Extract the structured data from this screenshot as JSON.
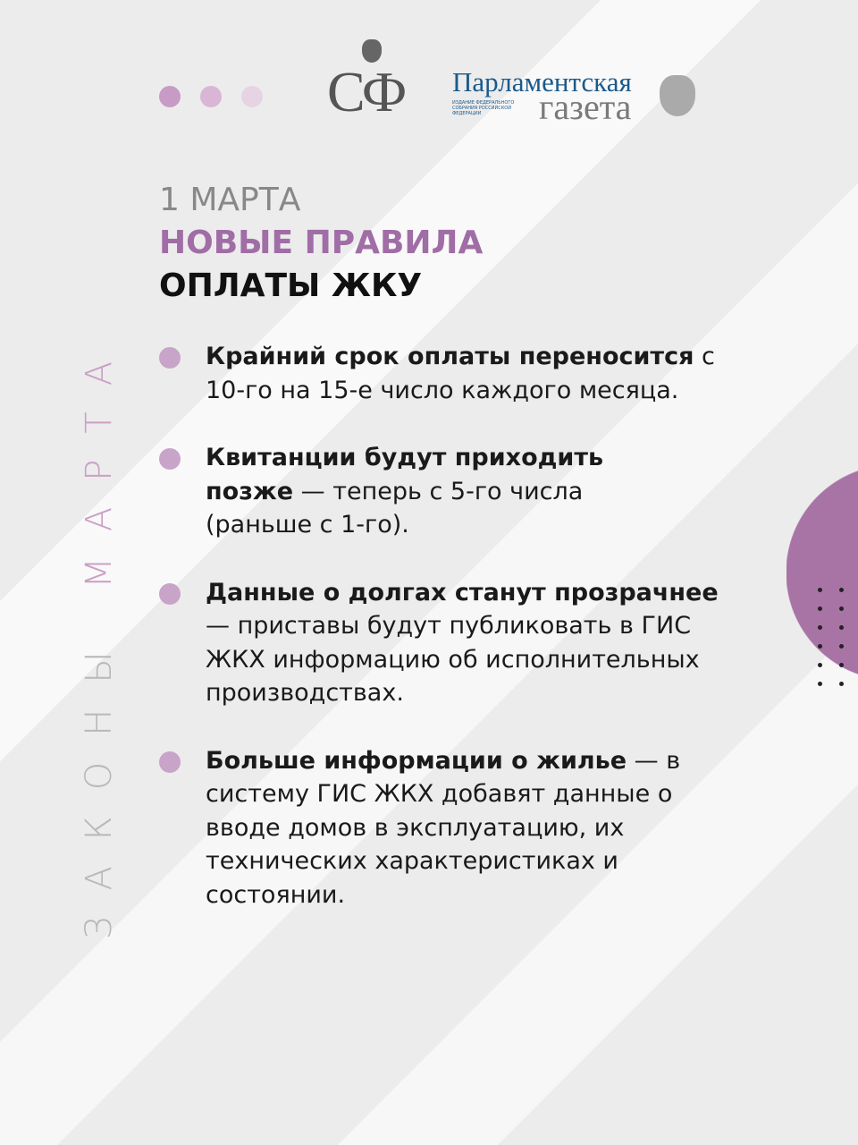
{
  "header": {
    "dot_colors": [
      "#c89ac6",
      "#d9b5d6",
      "#e6d3e4"
    ],
    "logo_sf": "СФ",
    "logo_pg_top": "Парламентская",
    "logo_pg_bottom": "газета",
    "logo_pg_sub": "ИЗДАНИЕ ФЕДЕРАЛЬНОГО СОБРАНИЯ РОССИЙСКОЙ ФЕДЕРАЦИИ"
  },
  "side_label": {
    "part1": "ЗАКОНЫ ",
    "part2": "МАРТА"
  },
  "title": {
    "date": "1 МАРТА",
    "line1": "НОВЫЕ ПРАВИЛА",
    "line2": "ОПЛАТЫ ЖКУ"
  },
  "items": [
    {
      "bold": "Крайний срок оплаты переносится",
      "text": " с 10-го на 15-е число каждого месяца."
    },
    {
      "bold": "Квитанции будут приходить позже",
      "text": " — теперь с 5-го числа (раньше с 1-го)."
    },
    {
      "bold": "Данные о долгах станут прозрачнее",
      "text": " — приставы будут публиковать в ГИС ЖКХ информацию об исполнительных производствах."
    },
    {
      "bold": "Больше информации о жилье",
      "text": " — в систему ГИС ЖКХ добавят данные о вводе домов в эксплуатацию, их технических характеристиках и состоянии."
    }
  ],
  "colors": {
    "accent": "#a06da6",
    "circle": "#a874a6",
    "bullet": "#c8a4c9"
  }
}
